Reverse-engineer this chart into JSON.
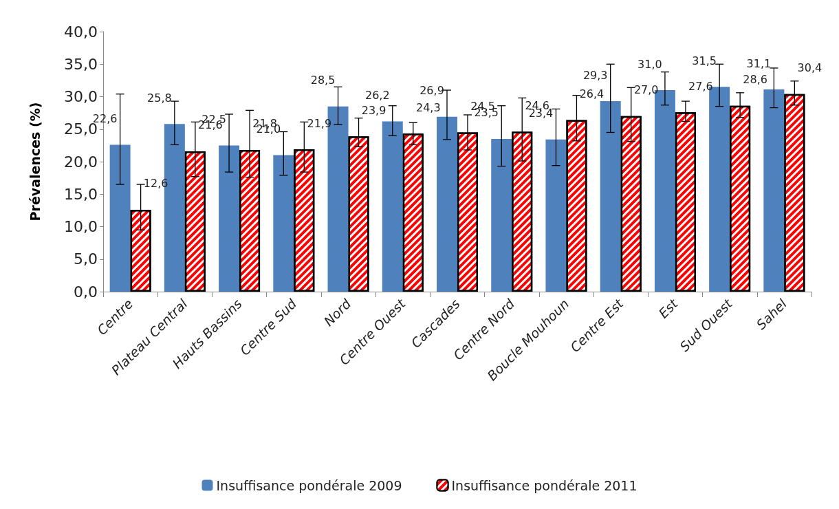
{
  "chart_data": {
    "type": "bar",
    "ylabel": "Prévalences (%)",
    "categories": [
      "Centre",
      "Plateau Central",
      "Hauts Bassins",
      "Centre Sud",
      "Nord",
      "Centre Ouest",
      "Cascades",
      "Centre Nord",
      "Boucle Mouhoun",
      "Centre Est",
      "Est",
      "Sud Ouest",
      "Sahel"
    ],
    "series": [
      {
        "name": "Insuffisance pondérale 2009",
        "color": "#4f81bd",
        "values": [
          22.6,
          25.8,
          22.5,
          21.0,
          28.5,
          26.2,
          26.9,
          23.5,
          23.4,
          29.3,
          31.0,
          31.5,
          31.1
        ],
        "value_labels": [
          "22,6",
          "25,8",
          "22,5",
          "21,0",
          "28,5",
          "26,2",
          "26,9",
          "23,5",
          "23,4",
          "29,3",
          "31,0",
          "31,5",
          "31,1"
        ],
        "errors": [
          [
            16.5,
            30.4
          ],
          [
            22.6,
            29.3
          ],
          [
            18.4,
            27.3
          ],
          [
            17.9,
            24.6
          ],
          [
            25.7,
            31.5
          ],
          [
            24.0,
            28.6
          ],
          [
            23.4,
            31.0
          ],
          [
            19.3,
            28.6
          ],
          [
            19.4,
            28.1
          ],
          [
            24.5,
            35.0
          ],
          [
            28.7,
            33.8
          ],
          [
            28.5,
            35.0
          ],
          [
            28.3,
            34.4
          ]
        ]
      },
      {
        "name": "Insuffisance pondérale 2011",
        "color": "#ff0000",
        "values": [
          12.6,
          21.6,
          21.8,
          21.9,
          23.9,
          24.3,
          24.5,
          24.6,
          26.4,
          27.0,
          27.6,
          28.6,
          30.4
        ],
        "value_labels": [
          "12,6",
          "21,6",
          "21,8",
          "21,9",
          "23,9",
          "24,3",
          "24,5",
          "24,6",
          "26,4",
          "27,0",
          "27,6",
          "28,6",
          "30,4"
        ],
        "errors": [
          [
            9.5,
            16.5
          ],
          [
            17.7,
            26.1
          ],
          [
            17.6,
            27.9
          ],
          [
            18.4,
            26.1
          ],
          [
            22.3,
            26.7
          ],
          [
            22.6,
            26.0
          ],
          [
            21.8,
            27.2
          ],
          [
            20.1,
            29.8
          ],
          [
            23.2,
            30.2
          ],
          [
            23.1,
            31.4
          ],
          [
            26.2,
            29.3
          ],
          [
            26.8,
            30.6
          ],
          [
            28.7,
            32.4
          ]
        ]
      }
    ],
    "ylim": [
      0,
      40
    ],
    "yticks": [
      {
        "value": 0,
        "label": "0,0"
      },
      {
        "value": 5,
        "label": "5,0"
      },
      {
        "value": 10,
        "label": "10,0"
      },
      {
        "value": 15,
        "label": "15,0"
      },
      {
        "value": 20,
        "label": "20,0"
      },
      {
        "value": 25,
        "label": "25,0"
      },
      {
        "value": 30,
        "label": "30,0"
      },
      {
        "value": 35,
        "label": "35,0"
      },
      {
        "value": 40,
        "label": "40,0"
      }
    ],
    "grid": false,
    "legend": "bottom"
  }
}
